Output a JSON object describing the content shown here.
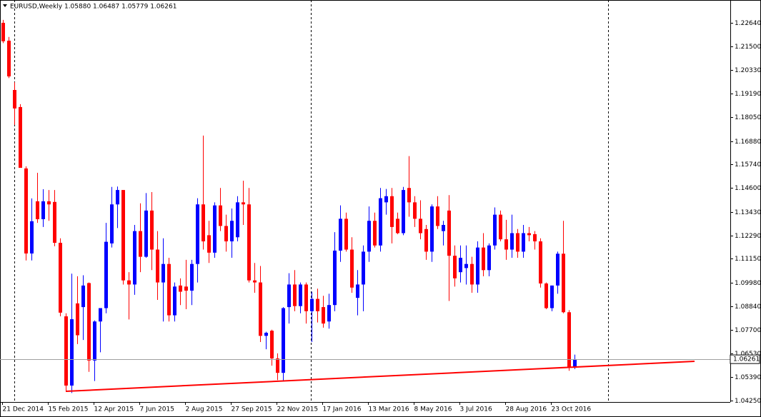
{
  "chart_data": {
    "type": "candlestick",
    "title": "EURUSD,Weekly  1.05880 1.06487 1.05779 1.06261",
    "categories": [
      "21 Dec 2014",
      null,
      null,
      null,
      null,
      null,
      null,
      null,
      "15 Feb 2015",
      null,
      null,
      null,
      null,
      null,
      null,
      null,
      "12 Apr 2015",
      null,
      null,
      null,
      null,
      null,
      null,
      null,
      "7 Jun 2015",
      null,
      null,
      null,
      null,
      null,
      null,
      null,
      "2 Aug 2015",
      null,
      null,
      null,
      null,
      null,
      null,
      null,
      "27 Sep 2015",
      null,
      null,
      null,
      null,
      null,
      null,
      null,
      "22 Nov 2015",
      null,
      null,
      null,
      null,
      null,
      null,
      null,
      "17 Jan 2016",
      null,
      null,
      null,
      null,
      null,
      null,
      null,
      "13 Mar 2016",
      null,
      null,
      null,
      null,
      null,
      null,
      null,
      "8 May 2016",
      null,
      null,
      null,
      null,
      null,
      null,
      null,
      "3 Jul 2016",
      null,
      null,
      null,
      null,
      null,
      null,
      null,
      "28 Aug 2016",
      null,
      null,
      null,
      null,
      null,
      null,
      null,
      "23 Oct 2016",
      null,
      null,
      null,
      null
    ],
    "open": [
      1.2264,
      1.2177,
      1.1937,
      1.1854,
      1.1555,
      1.1141,
      1.1395,
      1.1308,
      1.1395,
      1.1392,
      1.1193,
      1.0835,
      1.0498,
      1.0898,
      1.088,
      1.0997,
      1.062,
      1.081,
      1.0875,
      1.119,
      1.138,
      1.145,
      1.101,
      1.099,
      1.125,
      1.1125,
      1.135,
      1.116,
      1.1,
      1.109,
      1.084,
      1.0985,
      1.098,
      1.096,
      1.109,
      1.138,
      1.123,
      1.1145,
      1.1375,
      1.1275,
      1.12,
      1.122,
      1.139,
      1.138,
      1.101,
      1.1,
      1.074,
      1.0765,
      1.063,
      1.056,
      1.088,
      1.099,
      1.0885,
      1.099,
      1.086,
      1.092,
      1.088,
      1.081,
      1.089,
      1.1155,
      1.131,
      1.116,
      1.0925,
      1.099,
      1.115,
      1.13,
      1.118,
      1.139,
      1.142,
      1.131,
      1.124,
      1.146,
      1.139,
      1.131,
      1.126,
      1.115,
      1.137,
      1.125,
      1.135,
      1.113,
      1.105,
      1.107,
      1.109,
      1.099,
      1.117,
      1.106,
      1.118,
      1.133,
      1.121,
      1.116,
      1.124,
      1.115,
      1.124,
      1.1235,
      1.12,
      1.0995,
      1.0875,
      1.0985,
      1.114,
      1.0855,
      1.0588
    ],
    "high": [
      1.2278,
      1.2195,
      1.1975,
      1.1868,
      1.1565,
      1.1409,
      1.1534,
      1.1454,
      1.145,
      1.145,
      1.1215,
      1.085,
      1.1043,
      1.103,
      1.1035,
      1.1,
      1.0815,
      1.0875,
      1.129,
      1.1465,
      1.1467,
      1.145,
      1.105,
      1.128,
      1.1385,
      1.1435,
      1.144,
      1.125,
      1.1215,
      1.112,
      1.1,
      1.102,
      1.111,
      1.111,
      1.141,
      1.1715,
      1.13,
      1.139,
      1.146,
      1.133,
      1.136,
      1.142,
      1.1495,
      1.146,
      1.1095,
      1.108,
      1.076,
      1.077,
      1.0655,
      1.088,
      1.1045,
      1.106,
      1.1,
      1.1,
      1.0955,
      1.097,
      1.0935,
      1.0945,
      1.1245,
      1.1375,
      1.134,
      1.122,
      1.106,
      1.118,
      1.137,
      1.134,
      1.146,
      1.1455,
      1.146,
      1.134,
      1.1465,
      1.1615,
      1.142,
      1.14,
      1.128,
      1.138,
      1.142,
      1.13,
      1.1425,
      1.118,
      1.118,
      1.118,
      1.1125,
      1.12,
      1.124,
      1.119,
      1.1365,
      1.135,
      1.1305,
      1.133,
      1.126,
      1.128,
      1.127,
      1.125,
      1.1215,
      1.1,
      1.0985,
      1.115,
      1.13,
      1.0865,
      1.06487
    ],
    "low": [
      1.2165,
      1.1995,
      1.1767,
      1.1558,
      1.1107,
      1.1107,
      1.129,
      1.127,
      1.13,
      1.1176,
      1.0835,
      1.047,
      1.0462,
      1.07,
      1.072,
      1.0565,
      1.052,
      1.066,
      1.085,
      1.117,
      1.1265,
      1.099,
      1.082,
      1.094,
      1.105,
      1.112,
      1.106,
      1.0915,
      1.081,
      1.081,
      1.081,
      1.089,
      1.087,
      1.089,
      1.1,
      1.116,
      1.1095,
      1.112,
      1.125,
      1.115,
      1.112,
      1.12,
      1.128,
      1.1,
      1.095,
      1.071,
      1.0675,
      1.0595,
      1.0525,
      1.0522,
      1.08,
      1.086,
      1.085,
      1.08,
      1.071,
      1.0805,
      1.078,
      1.0775,
      1.086,
      1.11,
      1.115,
      1.095,
      1.084,
      1.086,
      1.11,
      1.117,
      1.115,
      1.133,
      1.119,
      1.1235,
      1.123,
      1.132,
      1.127,
      1.121,
      1.111,
      1.11,
      1.126,
      1.118,
      1.091,
      1.098,
      1.1,
      1.099,
      1.095,
      1.095,
      1.103,
      1.103,
      1.116,
      1.12,
      1.111,
      1.112,
      1.112,
      1.112,
      1.12,
      1.116,
      1.0975,
      1.087,
      1.086,
      1.0945,
      1.085,
      1.057,
      1.05779
    ],
    "close": [
      1.2174,
      1.2003,
      1.1847,
      1.1558,
      1.1141,
      1.1298,
      1.1308,
      1.1395,
      1.138,
      1.1193,
      1.0853,
      1.0498,
      1.0821,
      1.0743,
      1.0985,
      1.062,
      1.081,
      1.0875,
      1.1198,
      1.138,
      1.145,
      1.101,
      1.099,
      1.125,
      1.1125,
      1.135,
      1.116,
      1.1,
      1.109,
      1.084,
      1.098,
      1.0955,
      1.096,
      1.109,
      1.138,
      1.12,
      1.1145,
      1.1375,
      1.1275,
      1.12,
      1.13,
      1.139,
      1.138,
      1.101,
      1.1,
      1.074,
      1.0755,
      1.063,
      1.056,
      1.0875,
      1.099,
      1.0885,
      1.099,
      1.086,
      1.092,
      1.086,
      1.08,
      1.089,
      1.1155,
      1.131,
      1.116,
      1.0975,
      1.099,
      1.115,
      1.13,
      1.118,
      1.141,
      1.142,
      1.127,
      1.124,
      1.145,
      1.139,
      1.131,
      1.124,
      1.115,
      1.137,
      1.1275,
      1.128,
      1.113,
      1.102,
      1.112,
      1.109,
      1.099,
      1.117,
      1.106,
      1.118,
      1.133,
      1.121,
      1.116,
      1.124,
      1.115,
      1.124,
      1.123,
      1.12,
      1.0995,
      1.0875,
      1.0985,
      1.114,
      1.0855,
      1.0588,
      1.06261
    ],
    "up_color": "#0000ff",
    "down_color": "#ff0000",
    "ylim": [
      1.0418,
      1.2375
    ],
    "yticks": [
      {
        "value": 1.2264,
        "label": "1.22640"
      },
      {
        "value": 1.215,
        "label": "1.21500"
      },
      {
        "value": 1.2033,
        "label": "1.20330"
      },
      {
        "value": 1.1919,
        "label": "1.19190"
      },
      {
        "value": 1.1805,
        "label": "1.18050"
      },
      {
        "value": 1.1688,
        "label": "1.16880"
      },
      {
        "value": 1.1574,
        "label": "1.15740"
      },
      {
        "value": 1.146,
        "label": "1.14600"
      },
      {
        "value": 1.1343,
        "label": "1.13430"
      },
      {
        "value": 1.1229,
        "label": "1.12290"
      },
      {
        "value": 1.1115,
        "label": "1.11150"
      },
      {
        "value": 1.0998,
        "label": "1.09980"
      },
      {
        "value": 1.0884,
        "label": "1.08840"
      },
      {
        "value": 1.077,
        "label": "1.07700"
      },
      {
        "value": 1.0653,
        "label": "1.06530"
      },
      {
        "value": 1.0539,
        "label": "1.05390"
      },
      {
        "value": 1.0425,
        "label": "1.04250"
      }
    ],
    "current_price": {
      "value": 1.06261,
      "label": "1.06261"
    },
    "trend_line": {
      "color": "#ff0000",
      "x": [
        11,
        121
      ],
      "y": [
        1.047,
        1.0616
      ]
    }
  }
}
